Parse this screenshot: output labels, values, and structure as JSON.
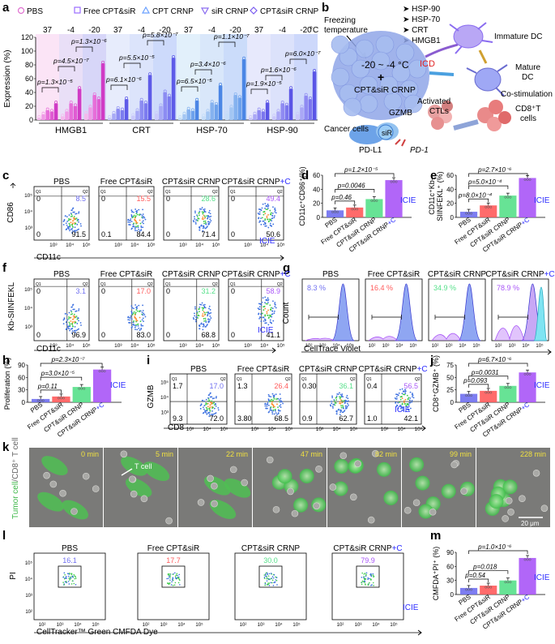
{
  "panel_letters": {
    "a": "a",
    "b": "b",
    "c": "c",
    "d": "d",
    "e": "e",
    "f": "f",
    "g": "g",
    "h": "h",
    "i": "i",
    "j": "j",
    "k": "k",
    "l": "l",
    "m": "m"
  },
  "colors": {
    "pbs": "#6f6ff0",
    "free": "#ff5b5b",
    "crnp": "#56e08a",
    "crnpc": "#a855f7",
    "icie": "#2c2cff",
    "pink": "#e070d0",
    "hmgbBg": "#fbe3f5",
    "crtBg": "#e3ecfb",
    "hspBg": "#e2effa",
    "p": "#222222"
  },
  "panel_a": {
    "legend": [
      "PBS",
      "Free CPT&siR",
      "CPT CRNP",
      "siR CRNP",
      "CPT&siR CRNP"
    ],
    "ylabel": "Expression (%)",
    "yticks": [
      "0",
      "20",
      "40",
      "60",
      "80",
      "100",
      "120"
    ],
    "temps": [
      "37",
      "-4",
      "-20",
      "37",
      "-4",
      "-20",
      "37",
      "-4",
      "-20",
      "37",
      "-4",
      "-20"
    ],
    "temp_unit": "°C",
    "groups": [
      "HMGB1",
      "CRT",
      "HSP-70",
      "HSP-90"
    ],
    "pvals": [
      "p=1.3×10⁻⁵",
      "p=4.5×10⁻⁷",
      "p=1.3×10⁻⁶",
      "p=6.1×10⁻⁶",
      "p=5.5×10⁻⁵",
      "p=5.8×10⁻⁷",
      "p=6.5×10⁻⁵",
      "p=3.4×10⁻⁶",
      "p=1.1×10⁻⁷",
      "p=1.9×10⁻⁵",
      "p=1.6×10⁻⁶",
      "p=6.0×10⁻⁷"
    ]
  },
  "chart_data": [
    {
      "type": "bar",
      "panel": "a",
      "title": "",
      "ylabel": "Expression (%)",
      "ylim": [
        0,
        120
      ],
      "categories": [
        "HMGB1 37",
        "HMGB1 -4",
        "HMGB1 -20",
        "CRT 37",
        "CRT -4",
        "CRT -20",
        "HSP-70 37",
        "HSP-70 -4",
        "HSP-70 -20",
        "HSP-90 37",
        "HSP-90 -4",
        "HSP-90 -20"
      ],
      "series": [
        {
          "name": "PBS",
          "values": [
            3,
            5,
            9,
            3,
            6,
            9,
            3,
            5,
            9,
            3,
            5,
            8
          ]
        },
        {
          "name": "Free CPT&siR",
          "values": [
            8,
            12,
            18,
            9,
            13,
            20,
            8,
            12,
            18,
            8,
            12,
            18
          ]
        },
        {
          "name": "CPT CRNP",
          "values": [
            14,
            24,
            36,
            16,
            28,
            40,
            15,
            25,
            36,
            14,
            24,
            35
          ]
        },
        {
          "name": "siR CRNP",
          "values": [
            12,
            20,
            30,
            14,
            24,
            34,
            13,
            22,
            32,
            12,
            21,
            30
          ]
        },
        {
          "name": "CPT&siR CRNP",
          "values": [
            24,
            45,
            82,
            30,
            65,
            90,
            28,
            50,
            88,
            25,
            45,
            70
          ]
        }
      ]
    },
    {
      "type": "bar",
      "panel": "d",
      "ylabel": "CD11c⁺CD86⁺(%)",
      "ylim": [
        0,
        60
      ],
      "categories": [
        "PBS",
        "Free CPT&siR",
        "CPT&siR CRNP",
        "CPT&siR CRNP+C"
      ],
      "values": [
        10,
        14,
        26,
        53
      ]
    },
    {
      "type": "bar",
      "panel": "e",
      "ylabel": "CD11c⁺Kb-SIINFEKL⁺ (%)",
      "ylim": [
        0,
        60
      ],
      "categories": [
        "PBS",
        "Free CPT&siR",
        "CPT&siR CRNP",
        "CPT&siR CRNP+C"
      ],
      "values": [
        8,
        17,
        31,
        56
      ]
    },
    {
      "type": "bar",
      "panel": "h",
      "ylabel": "Proliferation (%)",
      "ylim": [
        0,
        90
      ],
      "categories": [
        "PBS",
        "Free CPT&siR",
        "CPT&siR CRNP",
        "CPT&siR CRNP+C"
      ],
      "values": [
        8,
        14,
        37,
        79
      ]
    },
    {
      "type": "bar",
      "panel": "j",
      "ylabel": "CD8⁺GZMB⁺ (%)",
      "ylim": [
        0,
        75
      ],
      "categories": [
        "PBS",
        "Free CPT&siR",
        "CPT&siR CRNP",
        "CPT&siR CRNP+C"
      ],
      "values": [
        17,
        23,
        33,
        60
      ]
    },
    {
      "type": "bar",
      "panel": "m",
      "ylabel": "CMFDA⁺PI⁺ (%)",
      "ylim": [
        0,
        90
      ],
      "categories": [
        "PBS",
        "Free CPT&siR",
        "CPT&siR CRNP",
        "CPT&siR CRNP+C"
      ],
      "values": [
        14,
        19,
        30,
        78
      ]
    }
  ],
  "panel_b": {
    "items": [
      "HSP-90",
      "HSP-70",
      "CRT",
      "HMGB1"
    ],
    "freezing": [
      "Freezing",
      "temperature"
    ],
    "temp": "-20 ~ -4 °C",
    "plus": "+",
    "crnp": "CPT&siR CRNP",
    "icd": "ICD",
    "immature": "Immature DC",
    "mature": [
      "Mature",
      "DC"
    ],
    "costim": "Co-stimulation",
    "ctl": [
      "Activated",
      "CTLs"
    ],
    "cd8": [
      "CD8⁺T",
      "cells"
    ],
    "cancer": "Cancer cells",
    "gzmb": "GZMB",
    "sir": "siR",
    "pdl1": "PD-L1",
    "pd1": "PD-1"
  },
  "panel_c": {
    "titles": [
      "PBS",
      "Free CPT&siR",
      "CPT&siR CRNP",
      "CPT&siR CRNP+C"
    ],
    "q2": [
      "8.5",
      "15.5",
      "28.6",
      "49.4"
    ],
    "q3": [
      "91.5",
      "84.4",
      "71.4",
      "50.6"
    ],
    "q1": [
      "0",
      "0",
      "0",
      "0"
    ],
    "q4": [
      "0",
      "0.1",
      "0",
      "0"
    ],
    "ylabel": "CD86",
    "xlabel": "CD11c",
    "icie": "ICIE"
  },
  "panel_f": {
    "titles": [
      "PBS",
      "Free CPT&siR",
      "CPT&siR CRNP",
      "CPT&siR CRNP+C"
    ],
    "q2": [
      "3.1",
      "17.0",
      "31.2",
      "58.9"
    ],
    "q3": [
      "96.9",
      "83.0",
      "68.8",
      "41.1"
    ],
    "q1": [
      "0",
      "0",
      "0",
      "0"
    ],
    "q4": [
      "0",
      "0",
      "0",
      "0"
    ],
    "ylabel": "Kb-SIINFEKL",
    "xlabel": "CD11c",
    "icie": "ICIE"
  },
  "panel_g": {
    "titles": [
      "PBS",
      "Free CPT&siR",
      "CPT&siR CRNP",
      "CPT&siR CRNP+C"
    ],
    "pcts": [
      "8.3 %",
      "16.4 %",
      "34.9 %",
      "78.9 %"
    ],
    "ylabel": "Count",
    "xlabel": "CellTrace Violet"
  },
  "panel_i": {
    "titles": [
      "PBS",
      "Free CPT&siR",
      "CPT&siR CRNP",
      "CPT&siR CRNP+C"
    ],
    "q1": [
      "1.7",
      "1.3",
      "0.30",
      "0.4"
    ],
    "q2": [
      "17.0",
      "26.4",
      "36.1",
      "56.5"
    ],
    "q3": [
      "72.0",
      "68.5",
      "62.7",
      "42.1"
    ],
    "q4": [
      "9.3",
      "3.80",
      "0.9",
      "1.0"
    ],
    "ylabel": "GZMB",
    "xlabel": "CD8",
    "icie": "ICIE"
  },
  "panel_k": {
    "times": [
      "0 min",
      "5 min",
      "22 min",
      "47 min",
      "82 min",
      "99 min",
      "228 min"
    ],
    "tcell": "T cell",
    "scale": "20 μm",
    "ylabel_a": "Tumor cell",
    "ylabel_b": "/CD8⁺ T cell"
  },
  "panel_l": {
    "titles": [
      "PBS",
      "Free CPT&siR",
      "CPT&siR CRNP",
      "CPT&siR CRNP+C"
    ],
    "vals": [
      "16.1",
      "17.7",
      "30.0",
      "79.9"
    ],
    "ylabel": "PI",
    "xlabel": "CellTracker™ Green CMFDA Dye",
    "icie": "ICIE"
  },
  "bar_categories": [
    "PBS",
    "Free CPT&siR",
    "CPT&siR CRNP",
    "CPT&siR CRNP+C"
  ],
  "sig": {
    "d": [
      "p=0.46",
      "p=0.0046",
      "p=1.2×10⁻⁵"
    ],
    "e": [
      "p=8.0×10⁻⁴",
      "p=5.0×10⁻⁴",
      "p=2.7×10⁻⁶"
    ],
    "h": [
      "p=0.11",
      "p=3.0×10⁻⁵",
      "p=2.3×10⁻⁷"
    ],
    "j": [
      "p=0.093",
      "p=0.0031",
      "p=6.7×10⁻⁶"
    ],
    "m": [
      "p=0.54",
      "p=0.018",
      "p=1.0×10⁻⁶"
    ]
  },
  "ylabels": {
    "d": "CD11c⁺CD86⁺(%)",
    "e1": "CD11c⁺Kb-",
    "e2": "SIINFEKL⁺ (%)",
    "h": "Proliferation (%)",
    "j": "CD8⁺GZMB⁺ (%)",
    "m": "CMFDA⁺PI⁺ (%)"
  },
  "yticks": {
    "d": [
      "0",
      "20",
      "40",
      "60"
    ],
    "e": [
      "0",
      "20",
      "40",
      "60"
    ],
    "h": [
      "0",
      "30",
      "60",
      "90"
    ],
    "j": [
      "0",
      "25",
      "50",
      "75"
    ],
    "m": [
      "0",
      "30",
      "60",
      "90"
    ]
  },
  "axis_ticks": [
    "10³",
    "10⁴",
    "10⁵"
  ],
  "axis_ticks_full": [
    "10²",
    "10³",
    "10⁴",
    "10⁵"
  ],
  "icie": "ICIE"
}
